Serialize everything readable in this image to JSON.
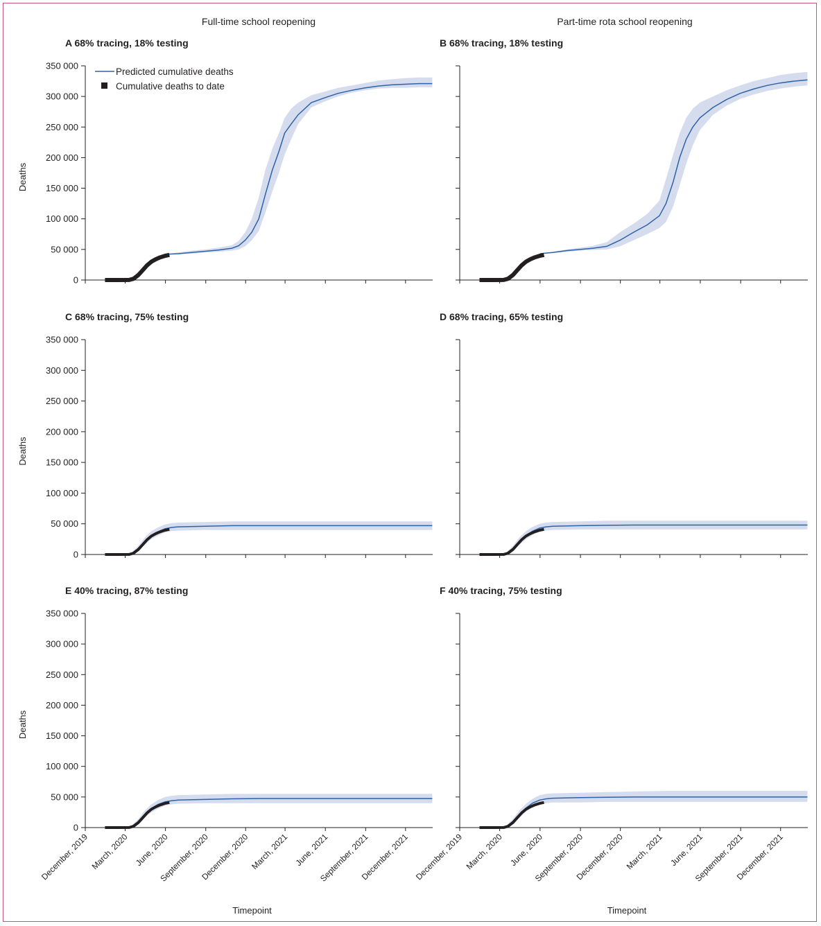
{
  "column_titles": [
    "Full-time school reopening",
    "Part-time rota school reopening"
  ],
  "legend": {
    "predicted_label": "Predicted cumulative deaths",
    "observed_label": "Cumulative deaths to date"
  },
  "colors": {
    "predicted_line": "#2e62a6",
    "confidence_band": "#d4dcee",
    "observed_marker": "#231f20",
    "frame_border": "#c9527a"
  },
  "chart_data": [
    {
      "type": "line",
      "letter": "A",
      "title": "68% tracing, 18% testing",
      "ylabel": "Deaths",
      "ylim": [
        0,
        350000
      ],
      "yticks": [
        0,
        50000,
        100000,
        150000,
        200000,
        250000,
        300000,
        350000
      ],
      "ytick_labels": [
        "0",
        "50 000",
        "100 000",
        "150 000",
        "200 000",
        "250 000",
        "300 000",
        "350 000"
      ],
      "xlabel": "",
      "series": [
        {
          "name": "Predicted cumulative deaths",
          "x": [
            "2020-05-31",
            "2020-06-30",
            "2020-07-31",
            "2020-08-31",
            "2020-09-30",
            "2020-10-31",
            "2020-11-15",
            "2020-11-30",
            "2020-12-15",
            "2020-12-31",
            "2021-01-15",
            "2021-01-31",
            "2021-02-15",
            "2021-02-28",
            "2021-03-15",
            "2021-03-31",
            "2021-04-30",
            "2021-05-31",
            "2021-06-30",
            "2021-07-31",
            "2021-08-31",
            "2021-09-30",
            "2021-10-31",
            "2021-11-30",
            "2021-12-31",
            "2022-01-31"
          ],
          "y": [
            42000,
            43000,
            45000,
            47000,
            49000,
            52000,
            56000,
            65000,
            78000,
            100000,
            140000,
            180000,
            210000,
            240000,
            255000,
            270000,
            290000,
            298000,
            305000,
            310000,
            314000,
            317000,
            319000,
            320000,
            321000,
            321000
          ],
          "lower": [
            42000,
            42000,
            43000,
            45000,
            46000,
            48000,
            50000,
            55000,
            65000,
            80000,
            110000,
            145000,
            175000,
            205000,
            230000,
            255000,
            282000,
            292000,
            300000,
            306000,
            310000,
            313000,
            314000,
            314000,
            315000,
            315000
          ],
          "upper": [
            42000,
            45000,
            48000,
            50000,
            53000,
            57000,
            64000,
            78000,
            100000,
            135000,
            180000,
            215000,
            240000,
            265000,
            280000,
            290000,
            302000,
            308000,
            314000,
            318000,
            322000,
            326000,
            328000,
            330000,
            331000,
            331000
          ]
        },
        {
          "name": "Cumulative deaths to date",
          "x": [
            "2020-01-15",
            "2020-02-15",
            "2020-03-10",
            "2020-03-20",
            "2020-03-31",
            "2020-04-10",
            "2020-04-20",
            "2020-04-30",
            "2020-05-10",
            "2020-05-20",
            "2020-05-31",
            "2020-06-10"
          ],
          "y": [
            0,
            0,
            100,
            2000,
            8000,
            16000,
            24000,
            30000,
            34000,
            37000,
            39500,
            41000
          ]
        }
      ]
    },
    {
      "type": "line",
      "letter": "B",
      "title": "68% tracing, 18% testing",
      "ylabel": "",
      "ylim": [
        0,
        350000
      ],
      "yticks": [
        0,
        50000,
        100000,
        150000,
        200000,
        250000,
        300000,
        350000
      ],
      "ytick_labels": [],
      "xlabel": "",
      "series": [
        {
          "name": "Predicted cumulative deaths",
          "x": [
            "2020-06-01",
            "2020-06-30",
            "2020-07-31",
            "2020-08-31",
            "2020-09-30",
            "2020-10-31",
            "2020-11-30",
            "2020-12-31",
            "2021-01-31",
            "2021-02-28",
            "2021-03-15",
            "2021-03-31",
            "2021-04-15",
            "2021-04-30",
            "2021-05-15",
            "2021-05-31",
            "2021-06-30",
            "2021-07-31",
            "2021-08-31",
            "2021-09-30",
            "2021-10-31",
            "2021-11-30",
            "2021-12-31",
            "2022-01-31"
          ],
          "y": [
            43000,
            45000,
            48000,
            50000,
            52000,
            55000,
            65000,
            78000,
            90000,
            105000,
            125000,
            160000,
            200000,
            230000,
            250000,
            265000,
            282000,
            295000,
            305000,
            312000,
            318000,
            322000,
            325000,
            327000
          ],
          "lower": [
            43000,
            44000,
            46000,
            48000,
            49000,
            50000,
            55000,
            65000,
            75000,
            85000,
            95000,
            120000,
            155000,
            190000,
            220000,
            245000,
            270000,
            285000,
            296000,
            303000,
            309000,
            313000,
            316000,
            318000
          ],
          "upper": [
            43000,
            46000,
            50000,
            53000,
            56000,
            62000,
            78000,
            92000,
            108000,
            130000,
            165000,
            205000,
            240000,
            265000,
            280000,
            290000,
            300000,
            310000,
            318000,
            325000,
            330000,
            335000,
            338000,
            340000
          ]
        },
        {
          "name": "Cumulative deaths to date",
          "x": [
            "2020-01-15",
            "2020-02-15",
            "2020-03-10",
            "2020-03-20",
            "2020-03-31",
            "2020-04-10",
            "2020-04-20",
            "2020-04-30",
            "2020-05-10",
            "2020-05-20",
            "2020-05-31",
            "2020-06-10"
          ],
          "y": [
            0,
            0,
            100,
            2000,
            8000,
            16000,
            24000,
            30000,
            34000,
            37000,
            39500,
            41000
          ]
        }
      ]
    },
    {
      "type": "line",
      "letter": "C",
      "title": "68% tracing, 75% testing",
      "ylabel": "Deaths",
      "ylim": [
        0,
        350000
      ],
      "yticks": [
        0,
        50000,
        100000,
        150000,
        200000,
        250000,
        300000,
        350000
      ],
      "ytick_labels": [
        "0",
        "50 000",
        "100 000",
        "150 000",
        "200 000",
        "250 000",
        "300 000",
        "350 000"
      ],
      "xlabel": "",
      "series": [
        {
          "name": "Predicted cumulative deaths",
          "x": [
            "2020-01-15",
            "2020-03-01",
            "2020-03-15",
            "2020-03-31",
            "2020-04-15",
            "2020-04-30",
            "2020-05-15",
            "2020-05-31",
            "2020-06-15",
            "2020-06-30",
            "2020-08-31",
            "2020-10-31",
            "2020-12-31",
            "2021-03-31",
            "2021-06-30",
            "2021-09-30",
            "2021-12-31",
            "2022-01-31"
          ],
          "y": [
            0,
            0,
            1500,
            10000,
            22000,
            31000,
            37000,
            42000,
            44000,
            45000,
            46000,
            47000,
            47000,
            47000,
            47000,
            47000,
            47000,
            47000
          ],
          "lower": [
            0,
            0,
            700,
            6000,
            16000,
            25000,
            31000,
            36000,
            38000,
            39000,
            40000,
            40000,
            40000,
            40000,
            40000,
            40000,
            40000,
            40000
          ],
          "upper": [
            0,
            0,
            2500,
            14000,
            28000,
            38000,
            44000,
            49000,
            51000,
            52000,
            53000,
            54000,
            54000,
            54000,
            54000,
            54000,
            54000,
            54000
          ]
        },
        {
          "name": "Cumulative deaths to date",
          "x": [
            "2020-01-15",
            "2020-02-15",
            "2020-03-10",
            "2020-03-20",
            "2020-03-31",
            "2020-04-10",
            "2020-04-20",
            "2020-04-30",
            "2020-05-10",
            "2020-05-20",
            "2020-05-31",
            "2020-06-10"
          ],
          "y": [
            0,
            0,
            100,
            2000,
            8000,
            16000,
            24000,
            30000,
            34000,
            37000,
            39500,
            41000
          ]
        }
      ]
    },
    {
      "type": "line",
      "letter": "D",
      "title": "68% tracing, 65% testing",
      "ylabel": "",
      "ylim": [
        0,
        350000
      ],
      "yticks": [
        0,
        50000,
        100000,
        150000,
        200000,
        250000,
        300000,
        350000
      ],
      "ytick_labels": [],
      "xlabel": "",
      "series": [
        {
          "name": "Predicted cumulative deaths",
          "x": [
            "2020-01-15",
            "2020-03-01",
            "2020-03-15",
            "2020-03-31",
            "2020-04-15",
            "2020-04-30",
            "2020-05-15",
            "2020-05-31",
            "2020-06-15",
            "2020-06-30",
            "2020-08-31",
            "2020-10-31",
            "2020-12-31",
            "2021-03-31",
            "2021-06-30",
            "2021-09-30",
            "2021-12-31",
            "2022-01-31"
          ],
          "y": [
            0,
            0,
            1500,
            10000,
            22000,
            31000,
            38000,
            43000,
            45000,
            46000,
            47000,
            47500,
            48000,
            48000,
            48000,
            48000,
            48000,
            48000
          ],
          "lower": [
            0,
            0,
            700,
            6000,
            16000,
            25000,
            32000,
            37000,
            39000,
            40000,
            41000,
            41000,
            41000,
            41000,
            41000,
            41000,
            41000,
            41000
          ],
          "upper": [
            0,
            0,
            2500,
            14000,
            28000,
            38000,
            45000,
            50000,
            52000,
            53000,
            54000,
            55000,
            55000,
            55000,
            55000,
            55000,
            55000,
            55000
          ]
        },
        {
          "name": "Cumulative deaths to date",
          "x": [
            "2020-01-15",
            "2020-02-15",
            "2020-03-10",
            "2020-03-20",
            "2020-03-31",
            "2020-04-10",
            "2020-04-20",
            "2020-04-30",
            "2020-05-10",
            "2020-05-20",
            "2020-05-31",
            "2020-06-10"
          ],
          "y": [
            0,
            0,
            100,
            2000,
            8000,
            16000,
            24000,
            30000,
            34000,
            37000,
            39500,
            41000
          ]
        }
      ]
    },
    {
      "type": "line",
      "letter": "E",
      "title": "40% tracing, 87% testing",
      "ylabel": "Deaths",
      "ylim": [
        0,
        350000
      ],
      "yticks": [
        0,
        50000,
        100000,
        150000,
        200000,
        250000,
        300000,
        350000
      ],
      "ytick_labels": [
        "0",
        "50 000",
        "100 000",
        "150 000",
        "200 000",
        "250 000",
        "300 000",
        "350 000"
      ],
      "xlabel": "Timepoint",
      "xtick_labels": [
        "December, 2019",
        "March, 2020",
        "June, 2020",
        "September, 2020",
        "December, 2020",
        "March, 2021",
        "June, 2021",
        "September, 2021",
        "December, 2021"
      ],
      "series": [
        {
          "name": "Predicted cumulative deaths",
          "x": [
            "2020-01-15",
            "2020-03-01",
            "2020-03-15",
            "2020-03-31",
            "2020-04-15",
            "2020-04-30",
            "2020-05-15",
            "2020-05-31",
            "2020-06-15",
            "2020-06-30",
            "2020-08-31",
            "2020-10-31",
            "2020-12-31",
            "2021-03-31",
            "2021-06-30",
            "2021-09-30",
            "2021-12-31",
            "2022-01-31"
          ],
          "y": [
            0,
            0,
            1500,
            10000,
            22000,
            31000,
            38000,
            42000,
            44000,
            45000,
            46000,
            47000,
            47500,
            47500,
            47500,
            47500,
            47500,
            47500
          ],
          "lower": [
            0,
            0,
            700,
            6000,
            16000,
            25000,
            31000,
            36000,
            38000,
            39000,
            40000,
            40000,
            40000,
            40000,
            40000,
            40000,
            40000,
            40000
          ],
          "upper": [
            0,
            0,
            2500,
            14000,
            28000,
            38000,
            45000,
            50000,
            52000,
            53000,
            54000,
            55000,
            55000,
            55000,
            55000,
            55000,
            55000,
            55000
          ]
        },
        {
          "name": "Cumulative deaths to date",
          "x": [
            "2020-01-15",
            "2020-02-15",
            "2020-03-10",
            "2020-03-20",
            "2020-03-31",
            "2020-04-10",
            "2020-04-20",
            "2020-04-30",
            "2020-05-10",
            "2020-05-20",
            "2020-05-31",
            "2020-06-10"
          ],
          "y": [
            0,
            0,
            100,
            2000,
            8000,
            16000,
            24000,
            30000,
            34000,
            37000,
            39500,
            41000
          ]
        }
      ]
    },
    {
      "type": "line",
      "letter": "F",
      "title": "40% tracing, 75% testing",
      "ylabel": "",
      "ylim": [
        0,
        350000
      ],
      "yticks": [
        0,
        50000,
        100000,
        150000,
        200000,
        250000,
        300000,
        350000
      ],
      "ytick_labels": [],
      "xlabel": "Timepoint",
      "xtick_labels": [
        "December, 2019",
        "March, 2020",
        "June, 2020",
        "September, 2020",
        "December, 2020",
        "March, 2021",
        "June, 2021",
        "September, 2021",
        "December, 2021"
      ],
      "series": [
        {
          "name": "Predicted cumulative deaths",
          "x": [
            "2020-01-15",
            "2020-03-01",
            "2020-03-15",
            "2020-03-31",
            "2020-04-15",
            "2020-04-30",
            "2020-05-15",
            "2020-05-31",
            "2020-06-15",
            "2020-06-30",
            "2020-08-31",
            "2020-10-31",
            "2020-12-31",
            "2021-03-31",
            "2021-06-30",
            "2021-09-30",
            "2021-12-31",
            "2022-01-31"
          ],
          "y": [
            0,
            0,
            1500,
            10000,
            22000,
            32000,
            40000,
            45000,
            47000,
            48000,
            49000,
            49500,
            50000,
            50000,
            50000,
            50000,
            50000,
            50000
          ],
          "lower": [
            0,
            0,
            700,
            6000,
            16000,
            26000,
            33000,
            38000,
            40000,
            41000,
            41000,
            42000,
            42000,
            42000,
            42000,
            42000,
            42000,
            42000
          ],
          "upper": [
            0,
            0,
            2500,
            14000,
            28000,
            39000,
            47000,
            53000,
            55000,
            56000,
            57000,
            58000,
            59000,
            60000,
            60000,
            60000,
            60000,
            60000
          ]
        },
        {
          "name": "Cumulative deaths to date",
          "x": [
            "2020-01-15",
            "2020-02-15",
            "2020-03-10",
            "2020-03-20",
            "2020-03-31",
            "2020-04-10",
            "2020-04-20",
            "2020-04-30",
            "2020-05-10",
            "2020-05-20",
            "2020-05-31",
            "2020-06-10"
          ],
          "y": [
            0,
            0,
            100,
            2000,
            8000,
            16000,
            24000,
            30000,
            34000,
            37000,
            39500,
            41000
          ]
        }
      ]
    }
  ]
}
